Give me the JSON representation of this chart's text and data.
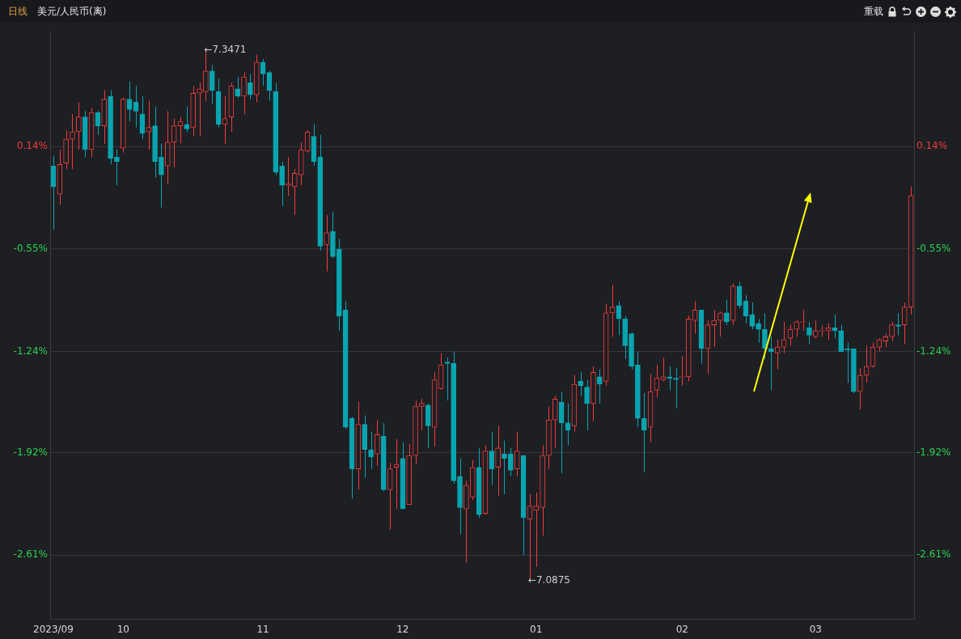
{
  "chart_data": {
    "type": "candlestick",
    "title": "美元/人民币(离)",
    "subtitle": "日线",
    "categories": [
      "2023/09",
      null,
      null,
      null,
      null,
      null,
      null,
      null,
      null,
      null,
      null,
      "10",
      null,
      null,
      null,
      null,
      null,
      null,
      null,
      null,
      null,
      null,
      null,
      null,
      null,
      null,
      null,
      null,
      null,
      null,
      null,
      null,
      null,
      "11",
      null,
      null,
      null,
      null,
      null,
      null,
      null,
      null,
      null,
      null,
      null,
      null,
      null,
      null,
      null,
      null,
      null,
      null,
      null,
      null,
      null,
      "12",
      null,
      null,
      null,
      null,
      null,
      null,
      null,
      null,
      null,
      null,
      null,
      null,
      null,
      null,
      null,
      null,
      null,
      null,
      null,
      null,
      "01",
      null,
      null,
      null,
      null,
      null,
      null,
      null,
      null,
      null,
      null,
      null,
      null,
      null,
      null,
      null,
      null,
      null,
      null,
      null,
      null,
      null,
      null,
      "02",
      null,
      null,
      null,
      null,
      null,
      null,
      null,
      null,
      null,
      null,
      null,
      null,
      null,
      null,
      null,
      null,
      null,
      null,
      null,
      null,
      "03",
      null,
      null,
      null,
      null,
      null,
      null,
      null,
      null,
      null,
      null,
      null,
      null,
      null,
      null,
      null
    ],
    "ohlc": [
      [
        0.01,
        0.08,
        -0.42,
        -0.13
      ],
      [
        -0.18,
        0.12,
        -0.25,
        0.02
      ],
      [
        0.03,
        0.25,
        -0.01,
        0.19
      ],
      [
        0.19,
        0.36,
        -0.01,
        0.24
      ],
      [
        0.24,
        0.44,
        0.12,
        0.34
      ],
      [
        0.34,
        0.38,
        0.07,
        0.12
      ],
      [
        0.12,
        0.4,
        0.07,
        0.37
      ],
      [
        0.37,
        0.38,
        0.22,
        0.28
      ],
      [
        0.28,
        0.52,
        0.16,
        0.46
      ],
      [
        0.48,
        0.52,
        0.02,
        0.06
      ],
      [
        0.07,
        0.12,
        -0.12,
        0.04
      ],
      [
        0.13,
        0.47,
        0.1,
        0.46
      ],
      [
        0.46,
        0.58,
        0.31,
        0.39
      ],
      [
        0.44,
        0.55,
        0.27,
        0.38
      ],
      [
        0.36,
        0.48,
        0.19,
        0.23
      ],
      [
        0.24,
        0.45,
        0.12,
        0.27
      ],
      [
        0.28,
        0.41,
        -0.07,
        0.04
      ],
      [
        0.07,
        0.16,
        -0.27,
        -0.05
      ],
      [
        0.01,
        0.38,
        -0.11,
        0.17
      ],
      [
        0.17,
        0.33,
        0.0,
        0.28
      ],
      [
        0.28,
        0.34,
        0.16,
        0.31
      ],
      [
        0.29,
        0.41,
        0.24,
        0.26
      ],
      [
        0.27,
        0.55,
        0.21,
        0.5
      ],
      [
        0.5,
        0.57,
        0.21,
        0.53
      ],
      [
        0.51,
        0.79,
        0.45,
        0.65
      ],
      [
        0.65,
        0.69,
        0.43,
        0.52
      ],
      [
        0.51,
        0.6,
        0.27,
        0.29
      ],
      [
        0.29,
        0.48,
        0.16,
        0.33
      ],
      [
        0.34,
        0.57,
        0.24,
        0.55
      ],
      [
        0.53,
        0.61,
        0.47,
        0.48
      ],
      [
        0.48,
        0.64,
        0.36,
        0.61
      ],
      [
        0.57,
        0.63,
        0.46,
        0.49
      ],
      [
        0.49,
        0.76,
        0.44,
        0.71
      ],
      [
        0.71,
        0.73,
        0.55,
        0.63
      ],
      [
        0.64,
        0.65,
        0.45,
        0.52
      ],
      [
        0.51,
        0.57,
        -0.05,
        -0.03
      ],
      [
        0.01,
        0.04,
        -0.26,
        -0.12
      ],
      [
        -0.12,
        0.07,
        -0.19,
        -0.11
      ],
      [
        -0.13,
        -0.01,
        -0.32,
        -0.04
      ],
      [
        -0.05,
        0.17,
        -0.12,
        0.12
      ],
      [
        0.11,
        0.25,
        0.1,
        0.24
      ],
      [
        0.21,
        0.29,
        0.01,
        0.04
      ],
      [
        0.07,
        0.22,
        -0.56,
        -0.53
      ],
      [
        -0.52,
        -0.32,
        -0.7,
        -0.44
      ],
      [
        -0.43,
        -0.3,
        -0.61,
        -0.6
      ],
      [
        -0.55,
        -0.48,
        -1.1,
        -1.0
      ],
      [
        -0.96,
        -0.9,
        -1.76,
        -1.75
      ],
      [
        -1.69,
        -1.68,
        -2.23,
        -2.03
      ],
      [
        -2.03,
        -1.58,
        -2.17,
        -1.73
      ],
      [
        -1.73,
        -1.67,
        -2.09,
        -1.9
      ],
      [
        -1.9,
        -1.78,
        -2.03,
        -1.95
      ],
      [
        -1.93,
        -1.7,
        -2.01,
        -1.8
      ],
      [
        -1.81,
        -1.72,
        -2.18,
        -2.17
      ],
      [
        -2.17,
        -1.99,
        -2.44,
        -2.03
      ],
      [
        -2.02,
        -1.83,
        -2.3,
        -2.0
      ],
      [
        -1.96,
        -1.85,
        -2.3,
        -2.3
      ],
      [
        -2.27,
        -1.86,
        -2.27,
        -1.94
      ],
      [
        -1.94,
        -1.57,
        -2.0,
        -1.61
      ],
      [
        -1.61,
        -1.56,
        -1.77,
        -1.59
      ],
      [
        -1.6,
        -1.59,
        -1.89,
        -1.74
      ],
      [
        -1.75,
        -1.38,
        -1.88,
        -1.43
      ],
      [
        -1.49,
        -1.25,
        -1.5,
        -1.33
      ],
      [
        -1.31,
        -1.28,
        -1.57,
        -1.32
      ],
      [
        -1.32,
        -1.24,
        -2.13,
        -2.11
      ],
      [
        -2.08,
        -1.96,
        -2.47,
        -2.29
      ],
      [
        -2.3,
        -2.11,
        -2.66,
        -2.14
      ],
      [
        -2.22,
        -1.97,
        -2.24,
        -2.02
      ],
      [
        -2.02,
        -1.89,
        -2.36,
        -2.34
      ],
      [
        -2.33,
        -1.87,
        -2.34,
        -1.91
      ],
      [
        -1.91,
        -1.78,
        -2.14,
        -2.03
      ],
      [
        -2.02,
        -1.74,
        -2.21,
        -1.89
      ],
      [
        -1.93,
        -1.84,
        -2.2,
        -1.96
      ],
      [
        -1.93,
        -1.89,
        -2.08,
        -2.04
      ],
      [
        -2.03,
        -1.78,
        -2.08,
        -1.91
      ],
      [
        -1.94,
        -1.94,
        -2.61,
        -2.36
      ],
      [
        -2.37,
        -2.2,
        -2.77,
        -2.28
      ],
      [
        -2.31,
        -2.19,
        -2.69,
        -2.28
      ],
      [
        -2.29,
        -1.87,
        -2.48,
        -1.94
      ],
      [
        -1.94,
        -1.61,
        -2.03,
        -1.7
      ],
      [
        -1.7,
        -1.54,
        -1.89,
        -1.56
      ],
      [
        -1.58,
        -1.51,
        -2.06,
        -1.72
      ],
      [
        -1.72,
        -1.59,
        -1.87,
        -1.77
      ],
      [
        -1.74,
        -1.4,
        -1.78,
        -1.46
      ],
      [
        -1.44,
        -1.38,
        -1.54,
        -1.47
      ],
      [
        -1.48,
        -1.43,
        -1.77,
        -1.59
      ],
      [
        -1.59,
        -1.34,
        -1.71,
        -1.38
      ],
      [
        -1.41,
        -1.36,
        -1.59,
        -1.46
      ],
      [
        -1.44,
        -0.92,
        -1.47,
        -0.98
      ],
      [
        -0.98,
        -0.79,
        -1.14,
        -0.94
      ],
      [
        -0.93,
        -0.9,
        -1.13,
        -1.02
      ],
      [
        -1.02,
        -1.0,
        -1.29,
        -1.2
      ],
      [
        -1.12,
        -1.11,
        -1.36,
        -1.34
      ],
      [
        -1.33,
        -1.24,
        -1.75,
        -1.69
      ],
      [
        -1.69,
        -1.52,
        -2.05,
        -1.77
      ],
      [
        -1.75,
        -1.39,
        -1.85,
        -1.51
      ],
      [
        -1.5,
        -1.33,
        -1.55,
        -1.42
      ],
      [
        -1.43,
        -1.28,
        -1.44,
        -1.41
      ],
      [
        -1.41,
        -1.34,
        -1.5,
        -1.42
      ],
      [
        -1.42,
        -1.35,
        -1.62,
        -1.43
      ],
      [
        -1.41,
        -1.27,
        -1.47,
        -1.41
      ],
      [
        -1.41,
        -1.0,
        -1.44,
        -1.02
      ],
      [
        -1.03,
        -0.9,
        -1.12,
        -0.96
      ],
      [
        -0.96,
        -0.96,
        -1.32,
        -1.22
      ],
      [
        -1.22,
        -1.03,
        -1.39,
        -1.06
      ],
      [
        -1.06,
        -0.96,
        -1.21,
        -1.03
      ],
      [
        -1.03,
        -0.97,
        -1.14,
        -0.98
      ],
      [
        -0.98,
        -0.89,
        -1.06,
        -1.04
      ],
      [
        -1.03,
        -0.78,
        -1.06,
        -0.8
      ],
      [
        -0.8,
        -0.77,
        -0.95,
        -0.93
      ],
      [
        -0.9,
        -0.86,
        -1.05,
        -1.0
      ],
      [
        -0.99,
        -0.91,
        -1.09,
        -1.07
      ],
      [
        -1.05,
        -1.02,
        -1.18,
        -1.09
      ],
      [
        -1.09,
        -0.98,
        -1.29,
        -1.22
      ],
      [
        -1.22,
        -1.14,
        -1.5,
        -1.24
      ],
      [
        -1.25,
        -1.16,
        -1.36,
        -1.21
      ],
      [
        -1.21,
        -1.04,
        -1.25,
        -1.16
      ],
      [
        -1.15,
        -1.06,
        -1.2,
        -1.09
      ],
      [
        -1.09,
        -1.03,
        -1.14,
        -1.04
      ],
      [
        -1.04,
        -0.96,
        -1.1,
        -1.04
      ],
      [
        -1.08,
        -1.04,
        -1.19,
        -1.13
      ],
      [
        -1.14,
        -1.03,
        -1.15,
        -1.1
      ],
      [
        -1.1,
        -1.06,
        -1.14,
        -1.1
      ],
      [
        -1.1,
        -1.05,
        -1.16,
        -1.08
      ],
      [
        -1.08,
        -0.99,
        -1.15,
        -1.1
      ],
      [
        -1.1,
        -1.06,
        -1.24,
        -1.24
      ],
      [
        -1.22,
        -1.18,
        -1.45,
        -1.23
      ],
      [
        -1.22,
        -1.22,
        -1.52,
        -1.51
      ],
      [
        -1.51,
        -1.35,
        -1.63,
        -1.4
      ],
      [
        -1.4,
        -1.2,
        -1.45,
        -1.34
      ],
      [
        -1.34,
        -1.18,
        -1.35,
        -1.21
      ],
      [
        -1.21,
        -1.15,
        -1.24,
        -1.16
      ],
      [
        -1.17,
        -1.12,
        -1.21,
        -1.14
      ],
      [
        -1.14,
        -1.04,
        -1.17,
        -1.06
      ],
      [
        -1.06,
        -0.98,
        -1.13,
        -1.07
      ],
      [
        -1.06,
        -0.91,
        -1.19,
        -0.94
      ],
      [
        -0.94,
        -0.13,
        -0.99,
        -0.19
      ]
    ],
    "colors": [
      "#08a5b1",
      "#f23b3b",
      "#f23b3b",
      "#f23b3b",
      "#f23b3b",
      "#08a5b1",
      "#f23b3b",
      "#08a5b1",
      "#f23b3b",
      "#08a5b1",
      "#08a5b1",
      "#f23b3b",
      "#08a5b1",
      "#08a5b1",
      "#08a5b1",
      "#f23b3b",
      "#08a5b1",
      "#08a5b1",
      "#f23b3b",
      "#f23b3b",
      "#f23b3b",
      "#08a5b1",
      "#f23b3b",
      "#f23b3b",
      "#f23b3b",
      "#08a5b1",
      "#08a5b1",
      "#f23b3b",
      "#f23b3b",
      "#08a5b1",
      "#f23b3b",
      "#08a5b1",
      "#f23b3b",
      "#08a5b1",
      "#08a5b1",
      "#08a5b1",
      "#08a5b1",
      "#f23b3b",
      "#f23b3b",
      "#f23b3b",
      "#f23b3b",
      "#08a5b1",
      "#08a5b1",
      "#f23b3b",
      "#08a5b1",
      "#08a5b1",
      "#08a5b1",
      "#08a5b1",
      "#f23b3b",
      "#08a5b1",
      "#08a5b1",
      "#f23b3b",
      "#08a5b1",
      "#f23b3b",
      "#f23b3b",
      "#08a5b1",
      "#f23b3b",
      "#f23b3b",
      "#f23b3b",
      "#08a5b1",
      "#f23b3b",
      "#f23b3b",
      "#08a5b1",
      "#08a5b1",
      "#08a5b1",
      "#f23b3b",
      "#f23b3b",
      "#08a5b1",
      "#f23b3b",
      "#08a5b1",
      "#f23b3b",
      "#08a5b1",
      "#08a5b1",
      "#f23b3b",
      "#08a5b1",
      "#f23b3b",
      "#f23b3b",
      "#f23b3b",
      "#f23b3b",
      "#f23b3b",
      "#08a5b1",
      "#08a5b1",
      "#f23b3b",
      "#08a5b1",
      "#08a5b1",
      "#f23b3b",
      "#08a5b1",
      "#f23b3b",
      "#f23b3b",
      "#08a5b1",
      "#08a5b1",
      "#08a5b1",
      "#08a5b1",
      "#08a5b1",
      "#f23b3b",
      "#f23b3b",
      "#f23b3b",
      "#08a5b1",
      "#08a5b1",
      "#f23b3b",
      "#f23b3b",
      "#f23b3b",
      "#08a5b1",
      "#f23b3b",
      "#f23b3b",
      "#f23b3b",
      "#08a5b1",
      "#f23b3b",
      "#08a5b1",
      "#08a5b1",
      "#08a5b1",
      "#08a5b1",
      "#08a5b1",
      "#08a5b1",
      "#f23b3b",
      "#f23b3b",
      "#f23b3b",
      "#f23b3b",
      "#f23b3b",
      "#08a5b1",
      "#f23b3b",
      "#f23b3b",
      "#f23b3b",
      "#08a5b1",
      "#08a5b1",
      "#08a5b1",
      "#08a5b1",
      "#f23b3b",
      "#f23b3b",
      "#f23b3b",
      "#f23b3b",
      "#f23b3b",
      "#f23b3b",
      "#08a5b1",
      "#f23b3b",
      "#f23b3b"
    ],
    "ylim": [
      -3.04,
      0.92
    ],
    "yticks": [
      {
        "value": 0.14,
        "label": "0.14%"
      },
      {
        "value": -0.55,
        "label": "-0.55%"
      },
      {
        "value": -1.24,
        "label": "-1.24%"
      },
      {
        "value": -1.92,
        "label": "-1.92%"
      },
      {
        "value": -2.61,
        "label": "-2.61%"
      }
    ],
    "y2lim": [
      -3.04,
      0.92
    ],
    "y2ticks": [
      {
        "value": 0.14,
        "label": "0.14%"
      },
      {
        "value": -0.55,
        "label": "-0.55%"
      },
      {
        "value": -1.24,
        "label": "-1.24%"
      },
      {
        "value": -1.92,
        "label": "-1.92%"
      },
      {
        "value": -2.61,
        "label": "-2.61%"
      }
    ],
    "annotations": [
      "←7.3471",
      "←7.0875",
      "重载"
    ],
    "grid": "y",
    "legend": false
  }
}
